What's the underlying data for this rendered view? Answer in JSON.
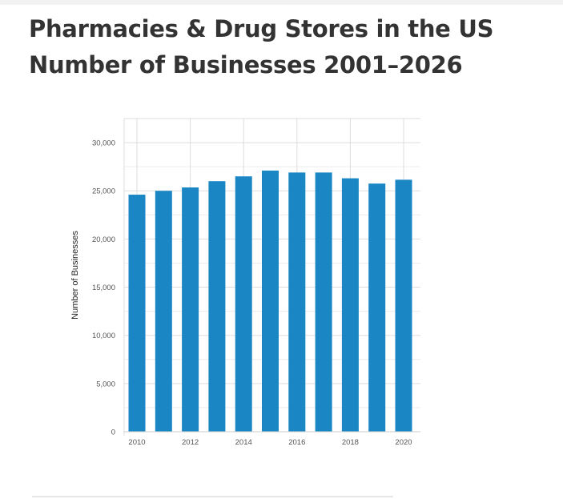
{
  "header": {
    "title_line1": "Pharmacies & Drug Stores in the US",
    "title_line2": "Number of Businesses 2001–2026"
  },
  "chart_data": {
    "type": "bar",
    "title": "Pharmacies & Drug Stores in the US Number of Businesses 2001–2026",
    "ylabel": "Number of Businesses",
    "xlabel": "",
    "ylim": [
      0,
      32500
    ],
    "yticks": [
      0,
      5000,
      10000,
      15000,
      20000,
      25000,
      30000
    ],
    "ytick_labels": [
      "0",
      "5,000",
      "10,000",
      "15,000",
      "20,000",
      "25,000",
      "30,000"
    ],
    "categories": [
      "2010",
      "2011",
      "2012",
      "2013",
      "2014",
      "2015",
      "2016",
      "2017",
      "2018",
      "2019",
      "2020"
    ],
    "x_tick_labels": [
      "2010",
      "2012",
      "2014",
      "2016",
      "2018",
      "2020"
    ],
    "values": [
      24600,
      25000,
      25350,
      26000,
      26500,
      27100,
      26900,
      26900,
      26300,
      25750,
      26150
    ],
    "bar_color": "#1a87c4",
    "grid": true
  }
}
